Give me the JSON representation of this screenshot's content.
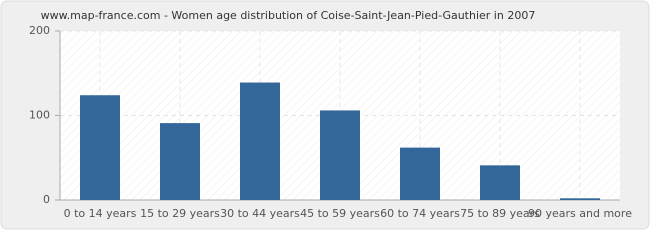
{
  "chart_data": {
    "type": "bar",
    "title": "www.map-france.com - Women age distribution of Coise-Saint-Jean-Pied-Gauthier in 2007",
    "categories": [
      "0 to 14 years",
      "15 to 29 years",
      "30 to 44 years",
      "45 to 59 years",
      "60 to 74 years",
      "75 to 89 years",
      "90 years and more"
    ],
    "values": [
      124,
      91,
      139,
      106,
      62,
      41,
      2
    ],
    "color": "#336699",
    "ylim": [
      0,
      200
    ],
    "yticks": [
      0,
      100,
      200
    ],
    "grid": true
  }
}
